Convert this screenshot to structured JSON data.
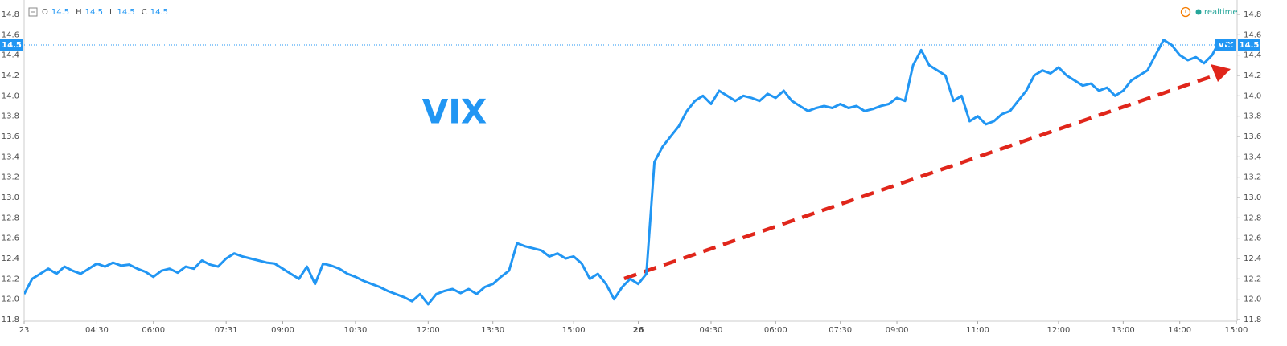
{
  "chart_data": {
    "type": "line",
    "title": "VIX",
    "ohlc": {
      "labels": [
        "O",
        "H",
        "L",
        "C"
      ],
      "values": [
        14.5,
        14.5,
        14.5,
        14.5
      ]
    },
    "status": "realtime",
    "last_value": 14.5,
    "categories": [
      "23",
      null,
      null,
      null,
      null,
      null,
      null,
      null,
      null,
      "04:30",
      null,
      null,
      null,
      null,
      null,
      null,
      "06:00",
      null,
      null,
      null,
      null,
      null,
      null,
      null,
      null,
      "07:31",
      null,
      null,
      null,
      null,
      null,
      null,
      "09:00",
      null,
      null,
      null,
      null,
      null,
      null,
      null,
      null,
      "10:30",
      null,
      null,
      null,
      null,
      null,
      null,
      null,
      null,
      "12:00",
      null,
      null,
      null,
      null,
      null,
      null,
      null,
      "13:30",
      null,
      null,
      null,
      null,
      null,
      null,
      null,
      null,
      null,
      "15:00",
      null,
      null,
      null,
      null,
      null,
      null,
      null,
      "26",
      null,
      null,
      null,
      null,
      null,
      null,
      null,
      null,
      "04:30",
      null,
      null,
      null,
      null,
      null,
      null,
      null,
      "06:00",
      null,
      null,
      null,
      null,
      null,
      null,
      null,
      "07:30",
      null,
      null,
      null,
      null,
      null,
      null,
      "09:00",
      null,
      null,
      null,
      null,
      null,
      null,
      null,
      null,
      null,
      "11:00",
      null,
      null,
      null,
      null,
      null,
      null,
      null,
      null,
      null,
      "12:00",
      null,
      null,
      null,
      null,
      null,
      null,
      null,
      "13:00",
      null,
      null,
      null,
      null,
      null,
      null,
      "14:00",
      null,
      null,
      null,
      null,
      null,
      null,
      "15:00"
    ],
    "series": [
      {
        "name": "VIX",
        "color": "#2196f3",
        "values": [
          12.05,
          12.2,
          12.25,
          12.3,
          12.25,
          12.32,
          12.28,
          12.25,
          12.3,
          12.35,
          12.32,
          12.36,
          12.33,
          12.34,
          12.3,
          12.27,
          12.22,
          12.28,
          12.3,
          12.26,
          12.32,
          12.3,
          12.38,
          12.34,
          12.32,
          12.4,
          12.45,
          12.42,
          12.4,
          12.38,
          12.36,
          12.35,
          12.3,
          12.25,
          12.2,
          12.32,
          12.15,
          12.35,
          12.33,
          12.3,
          12.25,
          12.22,
          12.18,
          12.15,
          12.12,
          12.08,
          12.05,
          12.02,
          11.98,
          12.05,
          11.95,
          12.05,
          12.08,
          12.1,
          12.06,
          12.1,
          12.05,
          12.12,
          12.15,
          12.22,
          12.28,
          12.55,
          12.52,
          12.5,
          12.48,
          12.42,
          12.45,
          12.4,
          12.42,
          12.35,
          12.2,
          12.25,
          12.15,
          12.0,
          12.12,
          12.2,
          12.15,
          12.25,
          13.35,
          13.5,
          13.6,
          13.7,
          13.85,
          13.95,
          14.0,
          13.92,
          14.05,
          14.0,
          13.95,
          14.0,
          13.98,
          13.95,
          14.02,
          13.98,
          14.05,
          13.95,
          13.9,
          13.85,
          13.88,
          13.9,
          13.88,
          13.92,
          13.88,
          13.9,
          13.85,
          13.87,
          13.9,
          13.92,
          13.98,
          13.95,
          14.3,
          14.45,
          14.3,
          14.25,
          14.2,
          13.95,
          14.0,
          13.75,
          13.8,
          13.72,
          13.75,
          13.82,
          13.85,
          13.95,
          14.05,
          14.2,
          14.25,
          14.22,
          14.28,
          14.2,
          14.15,
          14.1,
          14.12,
          14.05,
          14.08,
          14.0,
          14.05,
          14.15,
          14.2,
          14.25,
          14.4,
          14.55,
          14.5,
          14.4,
          14.35,
          14.38,
          14.32,
          14.4,
          14.55,
          14.5,
          14.5
        ]
      }
    ],
    "ylim": [
      11.8,
      14.8
    ],
    "yticks": [
      {
        "value": 11.8,
        "label": "11.8"
      },
      12.2,
      {
        "value": 12,
        "label": "12.0"
      },
      12.4,
      12.6,
      12.8,
      {
        "value": 13,
        "label": "13.0"
      },
      13.2,
      13.4,
      13.6,
      13.8,
      {
        "value": 14,
        "label": "14.0"
      },
      14.2,
      14.4,
      14.6,
      14.8
    ]
  }
}
